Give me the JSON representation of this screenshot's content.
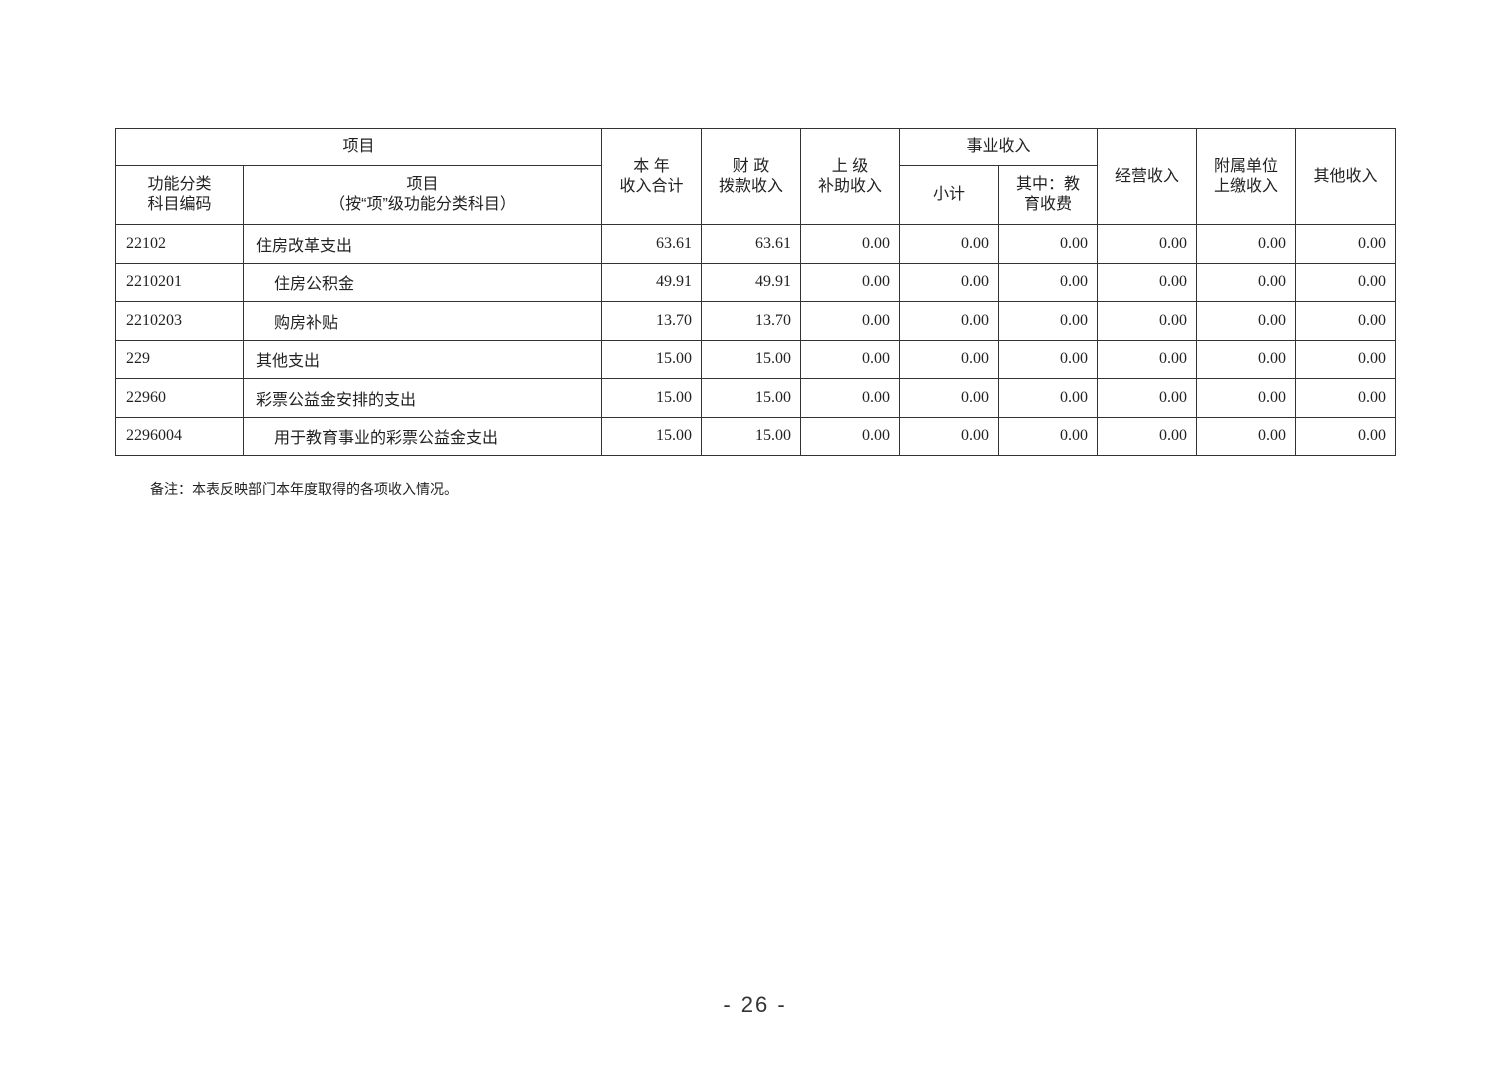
{
  "header": {
    "item": "项目",
    "code": "功能分类\n科目编码",
    "item_name": "项目\n（按“项”级功能分类科目）",
    "total": "本 年\n收入合计",
    "fiscal": "财 政\n拨款收入",
    "superior": "上 级\n补助收入",
    "business": "事业收入",
    "subtotal": "小计",
    "edu_fees": "其中：教\n育收费",
    "operating": "经营收入",
    "affiliated": "附属单位\n上缴收入",
    "other": "其他收入"
  },
  "rows": [
    {
      "code": "22102",
      "name": "住房改革支出",
      "indent": false,
      "values": [
        "63.61",
        "63.61",
        "0.00",
        "0.00",
        "0.00",
        "0.00",
        "0.00",
        "0.00"
      ]
    },
    {
      "code": "2210201",
      "name": "住房公积金",
      "indent": true,
      "values": [
        "49.91",
        "49.91",
        "0.00",
        "0.00",
        "0.00",
        "0.00",
        "0.00",
        "0.00"
      ]
    },
    {
      "code": "2210203",
      "name": "购房补贴",
      "indent": true,
      "values": [
        "13.70",
        "13.70",
        "0.00",
        "0.00",
        "0.00",
        "0.00",
        "0.00",
        "0.00"
      ]
    },
    {
      "code": "229",
      "name": "其他支出",
      "indent": false,
      "values": [
        "15.00",
        "15.00",
        "0.00",
        "0.00",
        "0.00",
        "0.00",
        "0.00",
        "0.00"
      ]
    },
    {
      "code": "22960",
      "name": "彩票公益金安排的支出",
      "indent": false,
      "values": [
        "15.00",
        "15.00",
        "0.00",
        "0.00",
        "0.00",
        "0.00",
        "0.00",
        "0.00"
      ]
    },
    {
      "code": "2296004",
      "name": "用于教育事业的彩票公益金支出",
      "indent": true,
      "values": [
        "15.00",
        "15.00",
        "0.00",
        "0.00",
        "0.00",
        "0.00",
        "0.00",
        "0.00"
      ]
    }
  ],
  "note": "备注：本表反映部门本年度取得的各项收入情况。",
  "page_number": "- 26 -"
}
